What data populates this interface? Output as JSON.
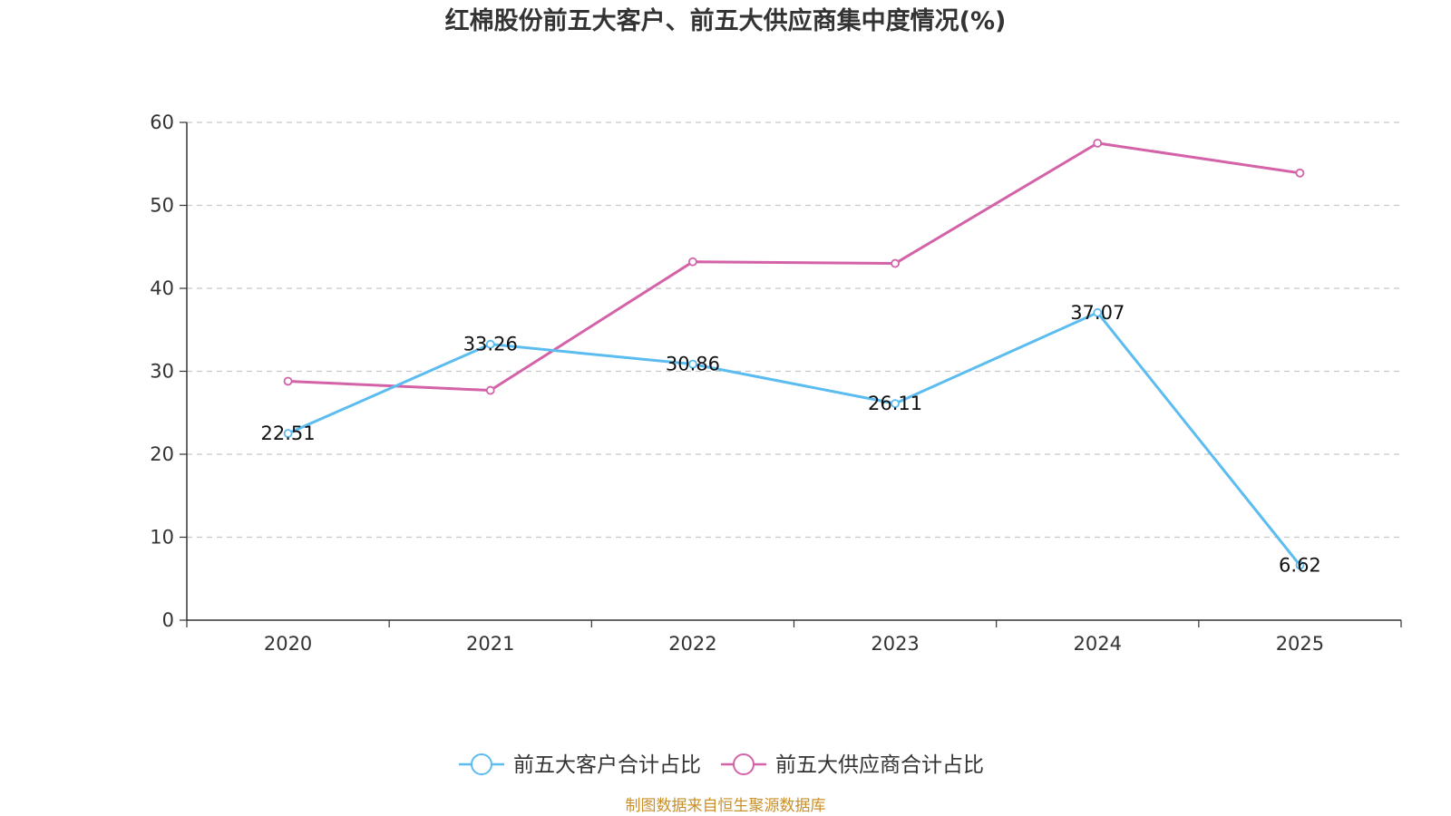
{
  "chart_data": {
    "type": "line",
    "title": "红棉股份前五大客户、前五大供应商集中度情况(%)",
    "categories": [
      "2020",
      "2021",
      "2022",
      "2023",
      "2024",
      "2025"
    ],
    "ylim": [
      0,
      60
    ],
    "yticks": [
      0,
      10,
      20,
      30,
      40,
      50,
      60
    ],
    "grid": true,
    "legend_position": "bottom",
    "series": [
      {
        "name": "前五大客户合计占比",
        "color": "#5bbcf0",
        "values": [
          22.51,
          33.26,
          30.86,
          26.11,
          37.07,
          6.62
        ],
        "labels": [
          "22.51",
          "33.26",
          "30.86",
          "26.11",
          "37.07",
          "6.62"
        ]
      },
      {
        "name": "前五大供应商合计占比",
        "color": "#d462a8",
        "values": [
          28.8,
          27.7,
          43.2,
          43.0,
          57.5,
          53.9
        ]
      }
    ],
    "source": "制图数据来自恒生聚源数据库",
    "source_color": "#c9902a"
  }
}
